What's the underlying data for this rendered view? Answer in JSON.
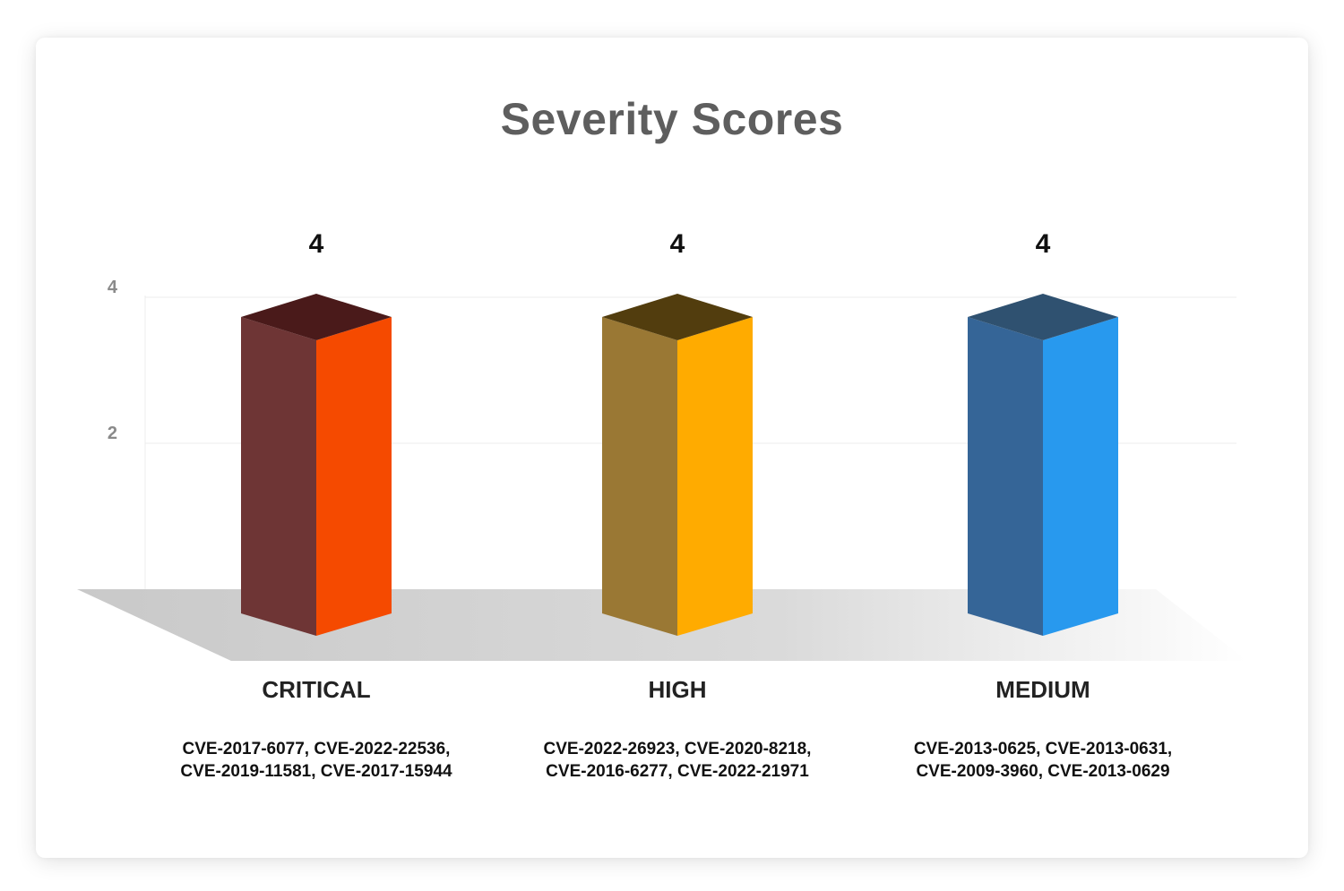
{
  "chart_data": {
    "type": "bar",
    "title": "Severity Scores",
    "categories": [
      "CRITICAL",
      "HIGH",
      "MEDIUM"
    ],
    "values": [
      4,
      4,
      4
    ],
    "data_labels": [
      "4",
      "4",
      "4"
    ],
    "yticks": [
      2,
      4
    ],
    "ylim": [
      0,
      4
    ],
    "grid": true,
    "category_details": [
      [
        "CVE-2017-6077, CVE-2022-22536,",
        "CVE-2019-11581, CVE-2017-15944"
      ],
      [
        "CVE-2022-26923, CVE-2020-8218,",
        "CVE-2016-6277, CVE-2022-21971"
      ],
      [
        "CVE-2013-0625, CVE-2013-0631,",
        "CVE-2009-3960, CVE-2013-0629"
      ]
    ],
    "colors": {
      "front": [
        "#6e3535",
        "#9a7834",
        "#356597"
      ],
      "side": [
        "#f54a00",
        "#ffab00",
        "#2899ee"
      ],
      "top": [
        "#4a1a1a",
        "#523d0e",
        "#2f5170"
      ]
    }
  }
}
